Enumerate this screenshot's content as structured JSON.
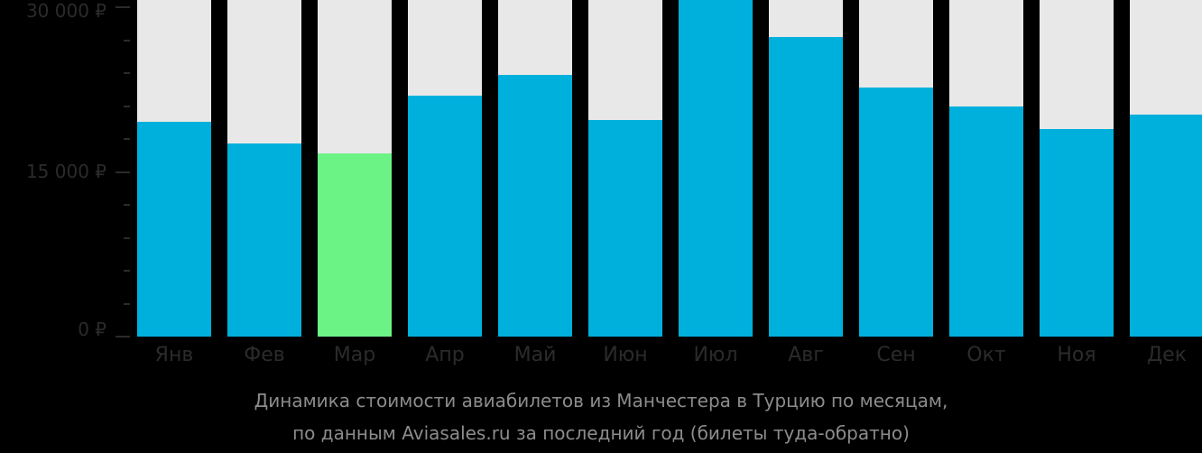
{
  "chart_data": {
    "type": "bar",
    "title": "Динамика стоимости авиабилетов из Манчестера в Турцию по месяцам, по данным Aviasales.ru за последний год (билеты туда-обратно)",
    "xlabel": "",
    "ylabel": "",
    "categories": [
      "Янв",
      "Фев",
      "Мар",
      "Апр",
      "Май",
      "Июн",
      "Июл",
      "Авг",
      "Сен",
      "Окт",
      "Ноя",
      "Дек"
    ],
    "values": [
      19560,
      17590,
      16680,
      21940,
      23830,
      19720,
      30650,
      27280,
      22680,
      20950,
      18900,
      20210
    ],
    "ylim": [
      0,
      30000
    ],
    "yticks": [
      "0 ₽",
      "15 000 ₽",
      "30 000 ₽"
    ],
    "highlight_index": 2,
    "colors": {
      "bar": "#00b0dc",
      "highlight": "#6cf385",
      "track": "#e8e8e8",
      "background": "#000000"
    },
    "grid": false,
    "legend": null
  },
  "axis": {
    "y0": "0 ₽",
    "y15": "15 000 ₽",
    "y30": "30 000 ₽"
  },
  "caption": {
    "line1": "Динамика стоимости авиабилетов из Манчестера в Турцию по месяцам,",
    "line2": "по данным Aviasales.ru за последний год (билеты туда-обратно)"
  }
}
